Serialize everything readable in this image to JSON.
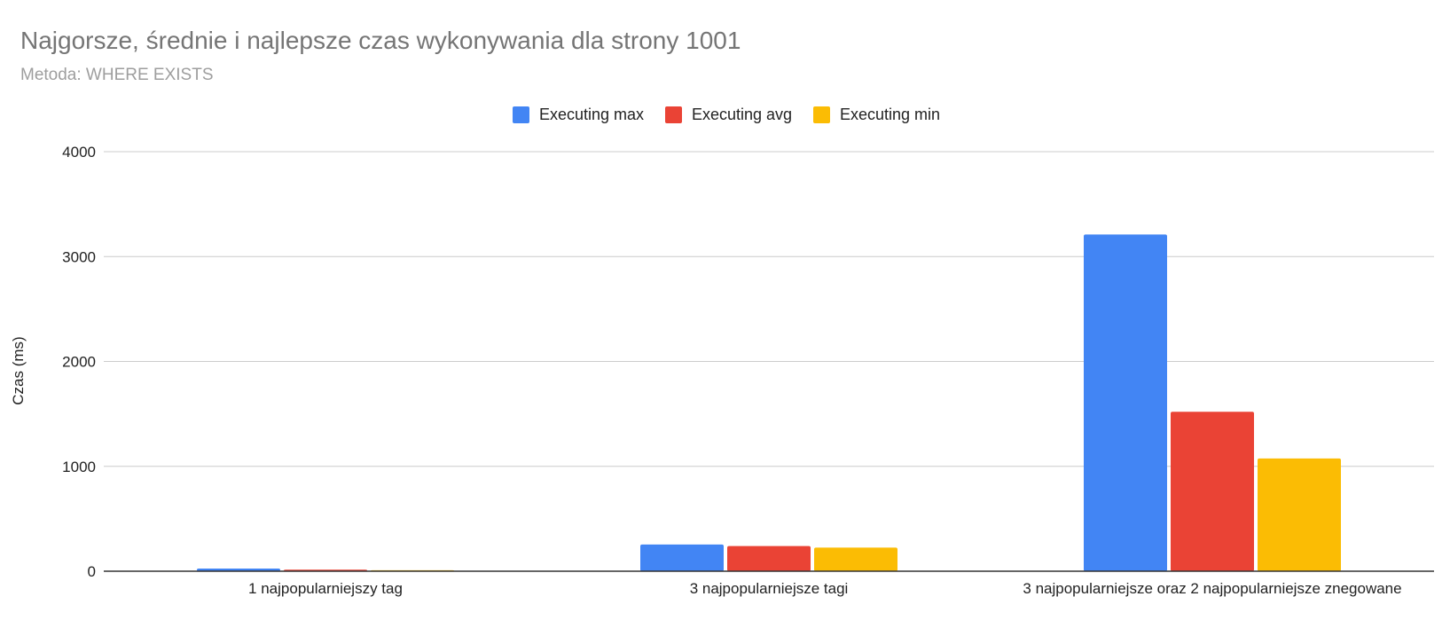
{
  "chart_data": {
    "type": "bar",
    "title": "Najgorsze, średnie i najlepsze czas wykonywania dla strony 1001",
    "subtitle": "Metoda: WHERE EXISTS",
    "xlabel": "",
    "ylabel": "Czas (ms)",
    "ylim": [
      0,
      4000
    ],
    "yticks": [
      "0",
      "1000",
      "2000",
      "3000",
      "4000"
    ],
    "categories": [
      "1 najpopularniejszy tag",
      "3 najpopularniejsze tagi",
      "3 najpopularniejsze oraz 2 najpopularniejsze znegowane"
    ],
    "series": [
      {
        "name": "Executing max",
        "color": "#4285f4",
        "values": [
          25,
          255,
          3210
        ]
      },
      {
        "name": "Executing avg",
        "color": "#ea4335",
        "values": [
          15,
          240,
          1520
        ]
      },
      {
        "name": "Executing min",
        "color": "#fbbc04",
        "values": [
          10,
          225,
          1075
        ]
      }
    ],
    "grid": true,
    "legend_position": "top"
  }
}
